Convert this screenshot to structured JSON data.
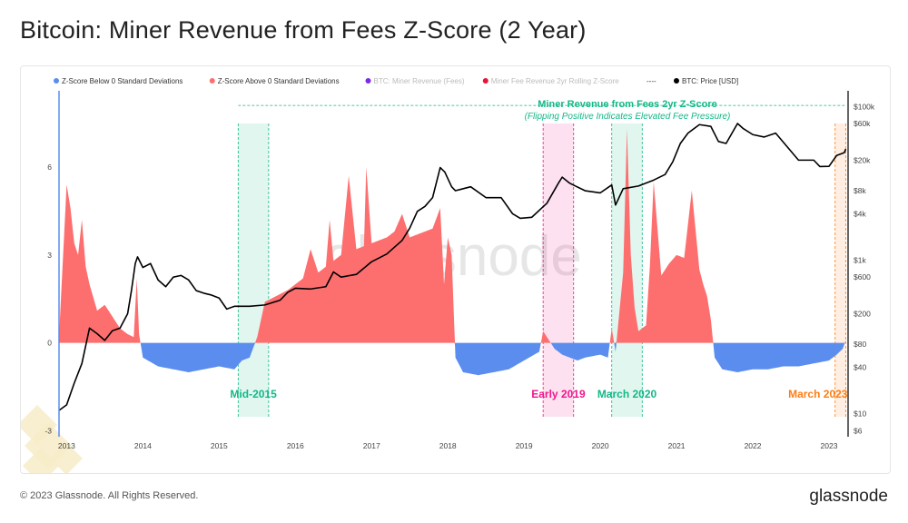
{
  "title": "Bitcoin: Miner Revenue from Fees Z-Score (2 Year)",
  "footer": {
    "copyright": "© 2023 Glassnode. All Rights Reserved.",
    "brand": "glassnode",
    "watermark": "glassnode"
  },
  "colors": {
    "negative": "#5b8def",
    "positive": "#fd6f6f",
    "price": "#000000",
    "green_band": "#12b886",
    "pink_band": "#f0168c",
    "orange_band": "#fd7e14",
    "annot_green": "#12b886"
  },
  "chart_data": {
    "type": "area",
    "title": "Miner Revenue from Fees 2yr Z-Score",
    "subtitle": "(Flipping Positive Indicates Elevated Fee Pressure)",
    "legend": [
      {
        "label": "Z-Score Below 0 Standard Deviations",
        "color": "#5b8def",
        "active": true
      },
      {
        "label": "Z-Score Above 0 Standard Deviations",
        "color": "#fd6f6f",
        "active": true
      },
      {
        "label": "BTC: Miner Revenue (Fees)",
        "color": "#7d2ae8",
        "active": false
      },
      {
        "label": "Miner Fee Revenue 2yr Rolling Z-Score",
        "color": "#e8123a",
        "active": false
      },
      {
        "label": "----",
        "color": "#000000",
        "active": true,
        "kind": "dash"
      },
      {
        "label": "BTC: Price [USD]",
        "color": "#000000",
        "active": true
      }
    ],
    "x_ticks": [
      "2013",
      "2014",
      "2015",
      "2016",
      "2017",
      "2018",
      "2019",
      "2020",
      "2021",
      "2022",
      "2023"
    ],
    "x_tick_years": [
      2013,
      2014,
      2015,
      2016,
      2017,
      2018,
      2019,
      2020,
      2021,
      2022,
      2023
    ],
    "x_range": [
      2012.9,
      2023.25
    ],
    "y_left": {
      "ticks": [
        "6",
        "3",
        "0",
        "-3"
      ],
      "tick_values": [
        6,
        3,
        0,
        -3
      ],
      "range": [
        -3.2,
        8.6
      ]
    },
    "y_right": {
      "scale": "log",
      "ticks": [
        "$100k",
        "$60k",
        "$20k",
        "$8k",
        "$4k",
        "$1k",
        "$600",
        "$200",
        "$80",
        "$40",
        "$10",
        "$6"
      ],
      "tick_values": [
        100000,
        60000,
        20000,
        8000,
        4000,
        1000,
        600,
        200,
        80,
        40,
        10,
        6
      ],
      "range": [
        5,
        160000
      ]
    },
    "zscore_series": {
      "name": "Miner Fee Revenue 2yr Rolling Z-Score",
      "t": [
        2012.9,
        2013.0,
        2013.05,
        2013.1,
        2013.15,
        2013.2,
        2013.25,
        2013.3,
        2013.4,
        2013.5,
        2013.6,
        2013.7,
        2013.8,
        2013.88,
        2013.92,
        2013.95,
        2014.0,
        2014.2,
        2014.4,
        2014.6,
        2014.8,
        2015.0,
        2015.2,
        2015.3,
        2015.4,
        2015.5,
        2015.6,
        2015.75,
        2015.9,
        2016.0,
        2016.1,
        2016.2,
        2016.3,
        2016.4,
        2016.45,
        2016.5,
        2016.6,
        2016.7,
        2016.8,
        2016.9,
        2016.93,
        2017.0,
        2017.1,
        2017.2,
        2017.3,
        2017.4,
        2017.5,
        2017.6,
        2017.7,
        2017.8,
        2017.9,
        2017.95,
        2018.0,
        2018.05,
        2018.1,
        2018.2,
        2018.4,
        2018.6,
        2018.8,
        2019.0,
        2019.2,
        2019.25,
        2019.3,
        2019.4,
        2019.5,
        2019.6,
        2019.7,
        2019.8,
        2020.0,
        2020.1,
        2020.15,
        2020.2,
        2020.3,
        2020.35,
        2020.4,
        2020.45,
        2020.5,
        2020.6,
        2020.65,
        2020.7,
        2020.8,
        2020.9,
        2021.0,
        2021.1,
        2021.2,
        2021.3,
        2021.35,
        2021.4,
        2021.45,
        2021.5,
        2021.6,
        2021.8,
        2022.0,
        2022.2,
        2022.4,
        2022.6,
        2022.8,
        2023.0,
        2023.1,
        2023.18,
        2023.22
      ],
      "z": [
        0.2,
        5.4,
        4.6,
        3.4,
        3.0,
        4.2,
        2.6,
        2.0,
        1.1,
        1.3,
        0.9,
        0.5,
        0.3,
        0.2,
        2.2,
        0.3,
        -0.5,
        -0.8,
        -0.9,
        -1.0,
        -0.9,
        -0.8,
        -0.9,
        -0.6,
        -0.5,
        0.2,
        1.4,
        1.6,
        1.8,
        2.0,
        2.2,
        3.2,
        2.4,
        2.6,
        4.2,
        2.8,
        3.0,
        5.7,
        3.2,
        3.3,
        6.0,
        3.4,
        3.5,
        3.6,
        3.8,
        4.4,
        3.6,
        3.7,
        3.8,
        3.9,
        4.6,
        2.0,
        3.6,
        3.0,
        -0.5,
        -1.0,
        -1.1,
        -1.0,
        -0.9,
        -0.6,
        -0.3,
        0.4,
        0.2,
        -0.2,
        -0.4,
        -0.5,
        -0.6,
        -0.5,
        -0.4,
        -0.5,
        0.5,
        -0.3,
        2.4,
        7.3,
        3.0,
        1.2,
        0.4,
        0.6,
        2.6,
        5.5,
        2.3,
        2.7,
        3.0,
        2.9,
        5.2,
        2.5,
        2.0,
        1.6,
        0.8,
        -0.5,
        -0.9,
        -1.0,
        -0.9,
        -0.9,
        -0.8,
        -0.8,
        -0.7,
        -0.6,
        -0.4,
        -0.2,
        0.1
      ]
    },
    "price_series": {
      "name": "BTC: Price [USD]",
      "t": [
        2012.9,
        2013.0,
        2013.1,
        2013.2,
        2013.3,
        2013.4,
        2013.5,
        2013.6,
        2013.7,
        2013.8,
        2013.85,
        2013.9,
        2013.93,
        2014.0,
        2014.1,
        2014.2,
        2014.3,
        2014.4,
        2014.5,
        2014.6,
        2014.7,
        2014.8,
        2014.9,
        2015.0,
        2015.1,
        2015.2,
        2015.4,
        2015.6,
        2015.8,
        2015.9,
        2016.0,
        2016.2,
        2016.4,
        2016.5,
        2016.6,
        2016.8,
        2017.0,
        2017.2,
        2017.4,
        2017.5,
        2017.6,
        2017.7,
        2017.8,
        2017.9,
        2017.96,
        2018.05,
        2018.1,
        2018.3,
        2018.5,
        2018.7,
        2018.85,
        2018.95,
        2019.1,
        2019.3,
        2019.45,
        2019.5,
        2019.6,
        2019.8,
        2020.0,
        2020.15,
        2020.2,
        2020.3,
        2020.5,
        2020.7,
        2020.85,
        2020.95,
        2021.05,
        2021.15,
        2021.3,
        2021.45,
        2021.55,
        2021.65,
        2021.8,
        2021.87,
        2022.0,
        2022.15,
        2022.3,
        2022.45,
        2022.6,
        2022.8,
        2022.88,
        2023.0,
        2023.1,
        2023.2,
        2023.22
      ],
      "p": [
        11,
        13,
        25,
        45,
        130,
        110,
        90,
        120,
        130,
        200,
        400,
        900,
        1100,
        800,
        900,
        550,
        450,
        600,
        630,
        550,
        400,
        370,
        350,
        320,
        230,
        250,
        250,
        260,
        300,
        380,
        430,
        420,
        450,
        700,
        600,
        650,
        950,
        1200,
        1800,
        2600,
        4300,
        5000,
        6500,
        16000,
        14000,
        9000,
        8000,
        9000,
        6500,
        6500,
        4000,
        3500,
        3600,
        5500,
        10000,
        12000,
        10000,
        8000,
        7500,
        9500,
        5200,
        8500,
        9200,
        11000,
        13000,
        19000,
        33000,
        45000,
        58000,
        55000,
        35000,
        33000,
        60000,
        52000,
        43000,
        40000,
        45000,
        30000,
        20000,
        20000,
        16500,
        16600,
        23000,
        25000,
        28000
      ]
    },
    "max_line_z": 8.1,
    "bands": [
      {
        "start": 2015.25,
        "end": 2015.65,
        "color": "#12b886",
        "label": "Mid-2015"
      },
      {
        "start": 2019.25,
        "end": 2019.65,
        "color": "#f0168c",
        "label": "Early 2019"
      },
      {
        "start": 2020.15,
        "end": 2020.55,
        "color": "#12b886",
        "label": "March 2020"
      },
      {
        "start": 2023.08,
        "end": 2023.22,
        "color": "#fd7e14",
        "label": "March 2023"
      }
    ]
  }
}
